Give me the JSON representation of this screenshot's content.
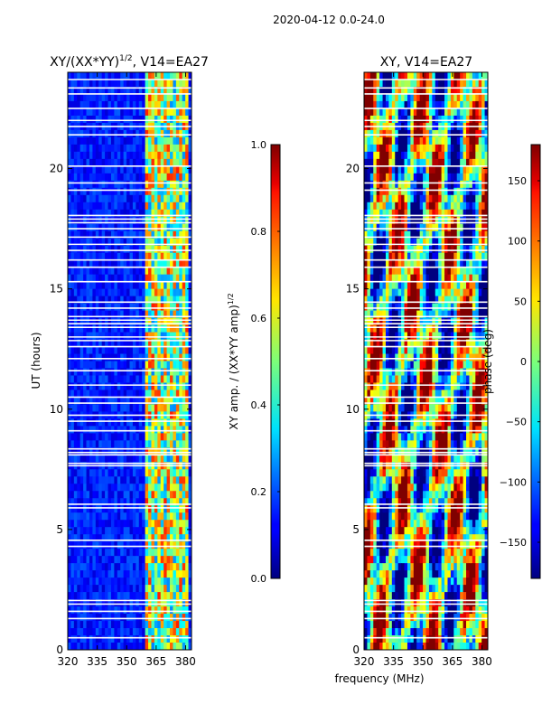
{
  "figure_title": "2020-04-12 0.0-24.0",
  "shared_xlabel": "frequency (MHz)",
  "chart_data": [
    {
      "type": "heatmap",
      "title_main": "XY/(XX*YY)",
      "title_exp": "1/2",
      "title_tail": ", V14=EA27",
      "ylabel": "UT (hours)",
      "xlim": [
        320,
        383
      ],
      "ylim": [
        0,
        24
      ],
      "xticks": [
        320,
        335,
        350,
        365,
        380
      ],
      "yticks": [
        0,
        5,
        10,
        15,
        20
      ],
      "colorbar": {
        "label_main": "XY amp. / (XX*YY amp)",
        "label_exp": "1/2",
        "range": [
          0.0,
          1.0
        ],
        "ticks": [
          "0.0",
          "0.2",
          "0.4",
          "0.6",
          "0.8",
          "1.0"
        ],
        "tick_values": [
          0.0,
          0.2,
          0.4,
          0.6,
          0.8,
          1.0
        ],
        "colormap": "jet"
      },
      "bright_band_mhz": [
        360,
        382
      ]
    },
    {
      "type": "heatmap",
      "title_main": "XY, V14=EA27",
      "xlim": [
        320,
        383
      ],
      "ylim": [
        0,
        24
      ],
      "xticks": [
        320,
        335,
        350,
        365,
        380
      ],
      "yticks": [
        0,
        5,
        10,
        15,
        20
      ],
      "colorbar": {
        "label_main": "phase (deg)",
        "range": [
          -180,
          180
        ],
        "ticks": [
          "150",
          "100",
          "50",
          "0",
          "−50",
          "−100",
          "−150"
        ],
        "tick_values": [
          150,
          100,
          50,
          0,
          -50,
          -100,
          -150
        ],
        "colormap": "jet"
      }
    }
  ],
  "flagged_hours": [
    0.5,
    1.3,
    1.6,
    1.9,
    2.05,
    4.3,
    4.55,
    5.9,
    6.05,
    7.65,
    7.75,
    8.1,
    8.2,
    8.35,
    9.1,
    9.5,
    9.75,
    10.25,
    10.5,
    11.0,
    11.6,
    12.1,
    12.6,
    12.85,
    13.0,
    13.4,
    13.55,
    13.7,
    13.85,
    14.2,
    14.45,
    15.3,
    15.9,
    16.2,
    16.6,
    16.85,
    17.15,
    17.5,
    17.75,
    17.9,
    18.05,
    19.1,
    19.4,
    20.1,
    21.4,
    21.75,
    22.0,
    22.5,
    23.1,
    23.35,
    23.7
  ]
}
